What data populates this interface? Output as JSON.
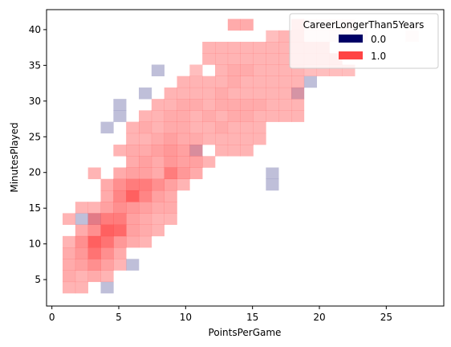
{
  "chart_data": {
    "type": "heatmap",
    "title": "",
    "xlabel": "PointsPerGame",
    "ylabel": "MinutesPlayed",
    "xlim": [
      -0.4,
      29.3
    ],
    "ylim": [
      1.3,
      42.8
    ],
    "x_ticks": [
      0,
      5,
      10,
      15,
      20,
      25
    ],
    "y_ticks": [
      5,
      10,
      15,
      20,
      25,
      30,
      35,
      40
    ],
    "x_tick_labels": [
      "0",
      "5",
      "10",
      "15",
      "20",
      "25"
    ],
    "y_tick_labels": [
      "5",
      "10",
      "15",
      "20",
      "25",
      "30",
      "35",
      "40"
    ],
    "bin_width_x": 0.95,
    "bin_width_y": 1.6,
    "x_bin_origin": 0.8,
    "y_bin_origin": 3.1,
    "grid": false,
    "legend": {
      "title": "CareerLongerThan5Years",
      "placement": "top-right",
      "entries": [
        {
          "label": "0.0",
          "color": "#000066"
        },
        {
          "label": "1.0",
          "color": "#ff4444"
        }
      ]
    },
    "series": [
      {
        "name": "0.0",
        "color": "#000066",
        "cells": [
          [
            1,
            6,
            0.25
          ],
          [
            2,
            6,
            0.25
          ],
          [
            3,
            0,
            0.25
          ],
          [
            5,
            2,
            0.25
          ],
          [
            3,
            14,
            0.25
          ],
          [
            4,
            15,
            0.25
          ],
          [
            4,
            16,
            0.25
          ],
          [
            6,
            17,
            0.25
          ],
          [
            7,
            19,
            0.25
          ],
          [
            10,
            12,
            0.25
          ],
          [
            16,
            10,
            0.25
          ],
          [
            16,
            9,
            0.25
          ],
          [
            18,
            17,
            0.25
          ],
          [
            19,
            18,
            0.25
          ]
        ]
      },
      {
        "name": "1.0",
        "color": "#ff4444",
        "cells": [
          [
            0,
            0,
            0.4
          ],
          [
            1,
            0,
            0.4
          ],
          [
            0,
            1,
            0.45
          ],
          [
            1,
            1,
            0.4
          ],
          [
            2,
            1,
            0.45
          ],
          [
            3,
            1,
            0.4
          ],
          [
            0,
            2,
            0.45
          ],
          [
            1,
            2,
            0.5
          ],
          [
            2,
            2,
            0.6
          ],
          [
            3,
            2,
            0.5
          ],
          [
            4,
            2,
            0.4
          ],
          [
            0,
            3,
            0.45
          ],
          [
            1,
            3,
            0.55
          ],
          [
            2,
            3,
            0.75
          ],
          [
            3,
            3,
            0.6
          ],
          [
            4,
            3,
            0.45
          ],
          [
            0,
            4,
            0.4
          ],
          [
            1,
            4,
            0.6
          ],
          [
            2,
            4,
            0.85
          ],
          [
            3,
            4,
            0.75
          ],
          [
            4,
            4,
            0.55
          ],
          [
            5,
            4,
            0.45
          ],
          [
            6,
            4,
            0.4
          ],
          [
            1,
            5,
            0.45
          ],
          [
            2,
            5,
            0.6
          ],
          [
            3,
            5,
            0.85
          ],
          [
            4,
            5,
            0.8
          ],
          [
            5,
            5,
            0.5
          ],
          [
            6,
            5,
            0.45
          ],
          [
            7,
            5,
            0.4
          ],
          [
            0,
            6,
            0.4
          ],
          [
            2,
            6,
            0.55
          ],
          [
            3,
            6,
            0.7
          ],
          [
            4,
            6,
            0.7
          ],
          [
            5,
            6,
            0.5
          ],
          [
            6,
            6,
            0.45
          ],
          [
            7,
            6,
            0.4
          ],
          [
            8,
            6,
            0.4
          ],
          [
            1,
            7,
            0.4
          ],
          [
            2,
            7,
            0.4
          ],
          [
            3,
            7,
            0.5
          ],
          [
            4,
            7,
            0.6
          ],
          [
            5,
            7,
            0.55
          ],
          [
            6,
            7,
            0.5
          ],
          [
            7,
            7,
            0.45
          ],
          [
            8,
            7,
            0.45
          ],
          [
            3,
            8,
            0.45
          ],
          [
            4,
            8,
            0.65
          ],
          [
            5,
            8,
            0.85
          ],
          [
            6,
            8,
            0.65
          ],
          [
            7,
            8,
            0.5
          ],
          [
            8,
            8,
            0.45
          ],
          [
            3,
            9,
            0.45
          ],
          [
            4,
            9,
            0.6
          ],
          [
            5,
            9,
            0.7
          ],
          [
            6,
            9,
            0.7
          ],
          [
            7,
            9,
            0.6
          ],
          [
            8,
            9,
            0.5
          ],
          [
            9,
            9,
            0.4
          ],
          [
            2,
            10,
            0.4
          ],
          [
            4,
            10,
            0.45
          ],
          [
            5,
            10,
            0.5
          ],
          [
            6,
            10,
            0.5
          ],
          [
            7,
            10,
            0.45
          ],
          [
            8,
            10,
            0.7
          ],
          [
            9,
            10,
            0.55
          ],
          [
            10,
            10,
            0.45
          ],
          [
            5,
            11,
            0.45
          ],
          [
            6,
            11,
            0.5
          ],
          [
            7,
            11,
            0.45
          ],
          [
            8,
            11,
            0.55
          ],
          [
            9,
            11,
            0.5
          ],
          [
            10,
            11,
            0.5
          ],
          [
            11,
            11,
            0.4
          ],
          [
            4,
            12,
            0.4
          ],
          [
            5,
            12,
            0.45
          ],
          [
            6,
            12,
            0.45
          ],
          [
            7,
            12,
            0.5
          ],
          [
            8,
            12,
            0.55
          ],
          [
            9,
            12,
            0.5
          ],
          [
            10,
            12,
            0.4
          ],
          [
            12,
            12,
            0.4
          ],
          [
            13,
            12,
            0.4
          ],
          [
            14,
            12,
            0.4
          ],
          [
            5,
            13,
            0.4
          ],
          [
            6,
            13,
            0.4
          ],
          [
            7,
            13,
            0.45
          ],
          [
            8,
            13,
            0.5
          ],
          [
            9,
            13,
            0.45
          ],
          [
            10,
            13,
            0.45
          ],
          [
            11,
            13,
            0.4
          ],
          [
            12,
            13,
            0.4
          ],
          [
            13,
            13,
            0.4
          ],
          [
            14,
            13,
            0.4
          ],
          [
            15,
            13,
            0.4
          ],
          [
            5,
            14,
            0.4
          ],
          [
            6,
            14,
            0.45
          ],
          [
            7,
            14,
            0.4
          ],
          [
            8,
            14,
            0.45
          ],
          [
            9,
            14,
            0.45
          ],
          [
            10,
            14,
            0.4
          ],
          [
            11,
            14,
            0.4
          ],
          [
            12,
            14,
            0.45
          ],
          [
            13,
            14,
            0.4
          ],
          [
            14,
            14,
            0.4
          ],
          [
            15,
            14,
            0.4
          ],
          [
            6,
            15,
            0.4
          ],
          [
            7,
            15,
            0.4
          ],
          [
            8,
            15,
            0.45
          ],
          [
            9,
            15,
            0.45
          ],
          [
            10,
            15,
            0.4
          ],
          [
            11,
            15,
            0.45
          ],
          [
            12,
            15,
            0.4
          ],
          [
            13,
            15,
            0.45
          ],
          [
            14,
            15,
            0.45
          ],
          [
            15,
            15,
            0.4
          ],
          [
            16,
            15,
            0.4
          ],
          [
            17,
            15,
            0.4
          ],
          [
            18,
            15,
            0.4
          ],
          [
            7,
            16,
            0.4
          ],
          [
            8,
            16,
            0.4
          ],
          [
            9,
            16,
            0.45
          ],
          [
            10,
            16,
            0.45
          ],
          [
            11,
            16,
            0.4
          ],
          [
            12,
            16,
            0.45
          ],
          [
            13,
            16,
            0.45
          ],
          [
            14,
            16,
            0.45
          ],
          [
            15,
            16,
            0.45
          ],
          [
            16,
            16,
            0.4
          ],
          [
            17,
            16,
            0.4
          ],
          [
            18,
            16,
            0.4
          ],
          [
            8,
            17,
            0.4
          ],
          [
            9,
            17,
            0.4
          ],
          [
            10,
            17,
            0.4
          ],
          [
            11,
            17,
            0.4
          ],
          [
            12,
            17,
            0.45
          ],
          [
            13,
            17,
            0.4
          ],
          [
            14,
            17,
            0.4
          ],
          [
            15,
            17,
            0.4
          ],
          [
            16,
            17,
            0.4
          ],
          [
            17,
            17,
            0.4
          ],
          [
            18,
            17,
            0.35
          ],
          [
            9,
            18,
            0.4
          ],
          [
            10,
            18,
            0.4
          ],
          [
            11,
            18,
            0.4
          ],
          [
            12,
            18,
            0.4
          ],
          [
            13,
            18,
            0.45
          ],
          [
            14,
            18,
            0.4
          ],
          [
            15,
            18,
            0.4
          ],
          [
            16,
            18,
            0.4
          ],
          [
            17,
            18,
            0.4
          ],
          [
            18,
            18,
            0.4
          ],
          [
            10,
            19,
            0.35
          ],
          [
            12,
            19,
            0.4
          ],
          [
            13,
            19,
            0.45
          ],
          [
            14,
            19,
            0.45
          ],
          [
            15,
            19,
            0.4
          ],
          [
            16,
            19,
            0.4
          ],
          [
            17,
            19,
            0.4
          ],
          [
            18,
            19,
            0.4
          ],
          [
            19,
            19,
            0.35
          ],
          [
            20,
            19,
            0.35
          ],
          [
            21,
            19,
            0.35
          ],
          [
            22,
            19,
            0.35
          ],
          [
            11,
            20,
            0.4
          ],
          [
            12,
            20,
            0.4
          ],
          [
            13,
            20,
            0.4
          ],
          [
            14,
            20,
            0.4
          ],
          [
            15,
            20,
            0.4
          ],
          [
            16,
            20,
            0.4
          ],
          [
            17,
            20,
            0.4
          ],
          [
            18,
            20,
            0.4
          ],
          [
            19,
            20,
            0.4
          ],
          [
            20,
            20,
            0.4
          ],
          [
            21,
            20,
            0.4
          ],
          [
            11,
            21,
            0.4
          ],
          [
            12,
            21,
            0.4
          ],
          [
            13,
            21,
            0.4
          ],
          [
            14,
            21,
            0.4
          ],
          [
            15,
            21,
            0.4
          ],
          [
            16,
            21,
            0.4
          ],
          [
            17,
            21,
            0.4
          ],
          [
            18,
            21,
            0.4
          ],
          [
            19,
            21,
            0.4
          ],
          [
            20,
            21,
            0.4
          ],
          [
            16,
            22,
            0.35
          ],
          [
            17,
            22,
            0.4
          ],
          [
            18,
            22,
            0.4
          ],
          [
            19,
            22,
            0.1
          ],
          [
            20,
            22,
            0.1
          ],
          [
            21,
            22,
            0.1
          ],
          [
            22,
            22,
            0.1
          ],
          [
            23,
            22,
            0.1
          ],
          [
            27,
            22,
            0.1
          ],
          [
            13,
            23,
            0.45
          ],
          [
            14,
            23,
            0.45
          ],
          [
            18,
            23,
            0.35
          ],
          [
            19,
            23,
            0.1
          ],
          [
            20,
            23,
            0.1
          ],
          [
            21,
            23,
            0.1
          ],
          [
            22,
            23,
            0.1
          ]
        ]
      }
    ]
  }
}
